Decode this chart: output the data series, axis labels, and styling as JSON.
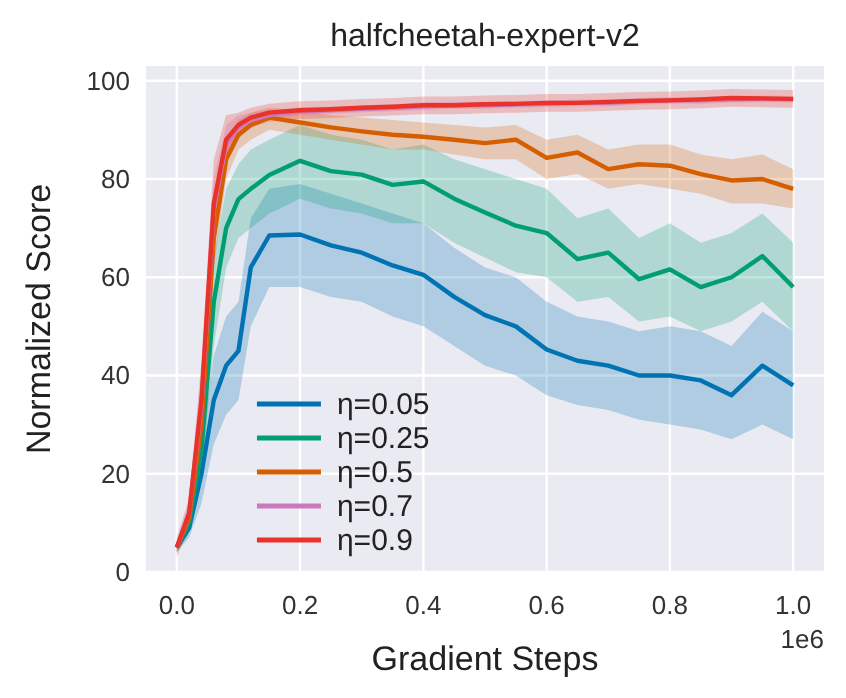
{
  "chart_data": {
    "type": "line",
    "title": "halfcheetah-expert-v2",
    "xlabel": "Gradient Steps",
    "ylabel": "Normalized Score",
    "annotations": [
      "1e6"
    ],
    "x": [
      0,
      0.02,
      0.04,
      0.06,
      0.08,
      0.1,
      0.12,
      0.15,
      0.2,
      0.25,
      0.3,
      0.35,
      0.4,
      0.45,
      0.5,
      0.55,
      0.6,
      0.65,
      0.7,
      0.75,
      0.8,
      0.85,
      0.9,
      0.95,
      1.0
    ],
    "xlim": [
      -0.05,
      1.05
    ],
    "xticks": [
      {
        "value": 0,
        "label": "0.0"
      },
      {
        "value": 0.2,
        "label": "0.2"
      },
      {
        "value": 0.4,
        "label": "0.4"
      },
      {
        "value": 0.6,
        "label": "0.6"
      },
      {
        "value": 0.8,
        "label": "0.8"
      },
      {
        "value": 1,
        "label": "1.0"
      }
    ],
    "ylim": [
      0,
      103
    ],
    "yticks": [
      0,
      20,
      40,
      60,
      80,
      100
    ],
    "grid": true,
    "legend": "bottom left",
    "series": [
      {
        "name": "η=0.05",
        "color": "#0173b2",
        "values": [
          5,
          9,
          20,
          35,
          42,
          45,
          62,
          68.5,
          68.7,
          66.5,
          65,
          62.4,
          60.5,
          56,
          52.3,
          50,
          45.3,
          43,
          42,
          40,
          40,
          39,
          36,
          42,
          38
        ],
        "lower": [
          4,
          7,
          14,
          26,
          32,
          35,
          50,
          58,
          58,
          56,
          55,
          52,
          50,
          46,
          42,
          40,
          36,
          34,
          33,
          31,
          30,
          29,
          27,
          30,
          27
        ],
        "upper": [
          6,
          11,
          26,
          44,
          52,
          55,
          72,
          78,
          79,
          77,
          75,
          73,
          71,
          66,
          62,
          60,
          55,
          52,
          51,
          49,
          50,
          49,
          46,
          53,
          49
        ]
      },
      {
        "name": "η=0.25",
        "color": "#029e73",
        "values": [
          5,
          10,
          25,
          55,
          70,
          75.9,
          78,
          80.8,
          83.7,
          81.6,
          80.9,
          78.8,
          79.5,
          76,
          73.2,
          70.5,
          69,
          63.7,
          65,
          59.6,
          61.6,
          58,
          60,
          64.3,
          58
        ],
        "lower": [
          4,
          8,
          19,
          46,
          62,
          68,
          70,
          73,
          76,
          74,
          73,
          71,
          71,
          67,
          64,
          61,
          60,
          55,
          56,
          51,
          52,
          49,
          51,
          55,
          49
        ],
        "upper": [
          6,
          12,
          31,
          64,
          78,
          83,
          86,
          88,
          91,
          89,
          88,
          86,
          87,
          84,
          82,
          80,
          78,
          72,
          74,
          68,
          71,
          67,
          69,
          73,
          67
        ]
      },
      {
        "name": "η=0.5",
        "color": "#d55e00",
        "values": [
          5,
          11,
          30,
          68,
          84,
          89,
          91,
          92.5,
          91.5,
          90.5,
          89.7,
          89,
          88.6,
          88,
          87.3,
          88,
          84.3,
          85.4,
          82,
          83,
          82.7,
          81,
          79.7,
          80,
          78
        ],
        "lower": [
          4,
          9,
          25,
          62,
          80,
          86,
          88,
          90,
          89,
          88,
          87,
          86,
          86,
          85,
          84,
          84,
          80,
          81,
          78,
          79,
          78,
          77,
          75,
          75,
          74
        ],
        "upper": [
          6,
          13,
          35,
          74,
          88,
          92,
          93.5,
          94.5,
          94,
          93,
          92.5,
          92,
          91.5,
          91,
          90.5,
          91,
          88,
          89,
          86,
          87,
          87,
          85,
          84,
          85,
          82
        ]
      },
      {
        "name": "η=0.7",
        "color": "#cc78bc",
        "values": [
          5,
          12,
          34,
          74,
          87,
          90.5,
          92,
          93,
          93.8,
          94,
          94.3,
          94.5,
          94.8,
          95,
          95,
          95.2,
          95.3,
          95.5,
          95.5,
          95.8,
          96,
          96,
          96.2,
          96.3,
          96.2
        ],
        "lower": [
          4,
          10,
          28,
          68,
          83,
          88,
          90.5,
          92,
          93,
          93.3,
          93.6,
          93.8,
          94,
          94.3,
          94.3,
          94.5,
          94.6,
          94.8,
          94.8,
          95.1,
          95.3,
          95.3,
          95.5,
          95.6,
          95.5
        ],
        "upper": [
          6,
          14,
          40,
          80,
          91,
          93,
          93.5,
          94,
          94.6,
          94.7,
          95,
          95.2,
          95.6,
          95.7,
          95.7,
          95.9,
          96,
          96.2,
          96.2,
          96.5,
          96.7,
          96.7,
          96.9,
          97,
          96.9
        ]
      },
      {
        "name": "η=0.9",
        "color": "#e8322a",
        "values": [
          5,
          12,
          35,
          75,
          88,
          91,
          92.5,
          93.5,
          94,
          94.2,
          94.5,
          94.7,
          95,
          95,
          95.2,
          95.3,
          95.5,
          95.5,
          95.7,
          95.9,
          96,
          96.2,
          96.5,
          96.4,
          96.3
        ],
        "lower": [
          3,
          9,
          27,
          66,
          83,
          88.5,
          90.5,
          91.7,
          92.2,
          92.4,
          92.7,
          92.9,
          93.2,
          93.2,
          93.4,
          93.5,
          93.7,
          93.7,
          93.9,
          94.1,
          94.2,
          94.4,
          94.7,
          94.6,
          94.5
        ],
        "upper": [
          7,
          15,
          43,
          84,
          93,
          93.5,
          94.5,
          95.3,
          95.8,
          96,
          96.3,
          96.5,
          96.8,
          96.8,
          97,
          97.1,
          97.3,
          97.3,
          97.5,
          97.7,
          97.8,
          98,
          98.3,
          98.2,
          98.1
        ]
      }
    ]
  }
}
